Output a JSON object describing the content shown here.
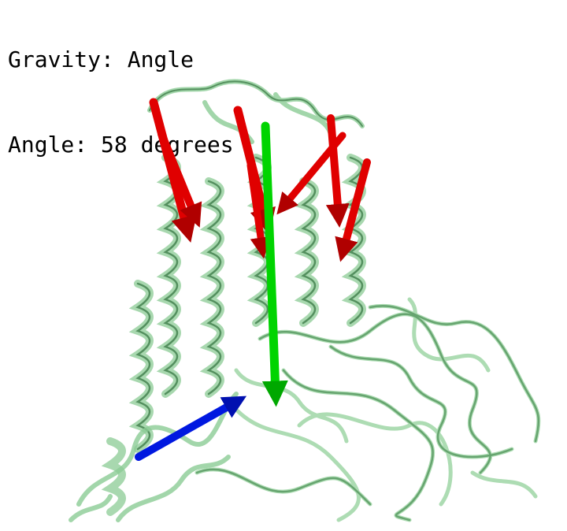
{
  "header": {
    "line1": "Gravity: Angle",
    "line2": "Angle: 58 degrees"
  },
  "scene": {
    "protein_color": "#7fc98a",
    "protein_shade": "#3f7d4a",
    "helix_arrow_color": "#e00000",
    "axis_arrow_color": "#00d400",
    "vector_arrow_color": "#0018e0",
    "helix_arrow_count": 7
  }
}
